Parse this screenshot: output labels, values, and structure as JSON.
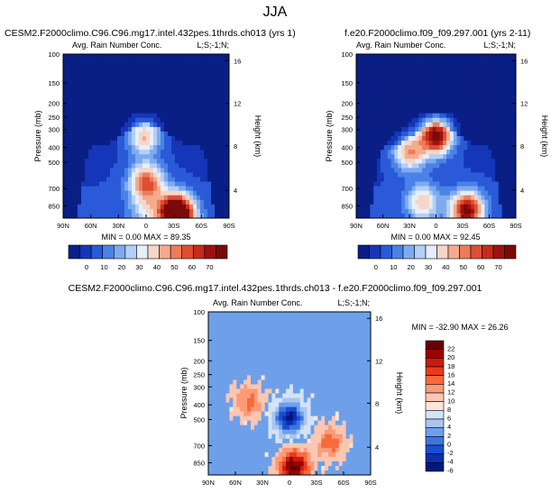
{
  "figure_title": "JJA",
  "chart_data": [
    {
      "type": "heatmap",
      "title": "CESM2.F2000climo.C96.C96.mg17.intel.432pes.1thrds.ch013 (yrs 1)",
      "subtitle_left": "Avg. Rain Number Conc.",
      "subtitle_right": "L;S;-1;N;",
      "ylabel": "Pressure (mb)",
      "ylabel_right": "Height (km)",
      "x_ticks": [
        "90N",
        "60N",
        "30N",
        "0",
        "30S",
        "60S",
        "90S"
      ],
      "y_ticks": [
        "100",
        "150",
        "200",
        "250",
        "300",
        "400",
        "500",
        "700",
        "850"
      ],
      "y2_ticks": [
        "16",
        "12",
        "8",
        "4"
      ],
      "min_max": "MIN =  0.00  MAX =  89.35",
      "colorbar_labels": [
        "0",
        "10",
        "20",
        "30",
        "40",
        "50",
        "60",
        "70"
      ],
      "colorbar_orientation": "horizontal",
      "value_range": [
        0,
        89.35
      ],
      "blobs": [
        {
          "x": 0.5,
          "y": 0.78,
          "v": 0.6
        },
        {
          "x": 0.2,
          "y": 0.95,
          "v": 0.25
        },
        {
          "x": -2,
          "y": 0.5,
          "v": 0.45
        },
        {
          "x": 30,
          "y": 0.95,
          "v": 0.45
        },
        {
          "x": 35,
          "y": 0.98,
          "v": 0.8
        }
      ]
    },
    {
      "type": "heatmap",
      "title": "f.e20.F2000climo.f09_f09.297.001 (yrs 2-11)",
      "subtitle_left": "Avg. Rain Number Conc.",
      "subtitle_right": "L;S;-1;N;",
      "ylabel": "Pressure (mb)",
      "ylabel_right": "Height (km)",
      "x_ticks": [
        "90N",
        "60N",
        "30N",
        "0",
        "30S",
        "60S",
        "90S"
      ],
      "y_ticks": [
        "100",
        "150",
        "200",
        "250",
        "300",
        "400",
        "500",
        "700",
        "850"
      ],
      "y2_ticks": [
        "16",
        "12",
        "8",
        "4"
      ],
      "min_max": "MIN =  0.00  MAX =  92.45",
      "colorbar_labels": [
        "0",
        "10",
        "20",
        "30",
        "40",
        "50",
        "60",
        "70"
      ],
      "colorbar_orientation": "horizontal",
      "value_range": [
        0,
        92.45
      ],
      "blobs": [
        {
          "x": -30,
          "y": 0.6,
          "v": 0.5
        },
        {
          "x": 0,
          "y": 0.5,
          "v": 0.85
        },
        {
          "x": -15,
          "y": 0.9,
          "v": 0.4
        },
        {
          "x": 35,
          "y": 0.95,
          "v": 0.8
        }
      ]
    },
    {
      "type": "heatmap",
      "title": "CESM2.F2000climo.C96.C96.mg17.intel.432pes.1thrds.ch013 - f.e20.F2000climo.f09_f09.297.001",
      "subtitle_left": "Avg. Rain Number Conc.",
      "subtitle_right": "L;S;-1;N;",
      "ylabel": "Pressure (mb)",
      "ylabel_right": "Height (km)",
      "x_ticks": [
        "90N",
        "60N",
        "30N",
        "0",
        "30S",
        "60S",
        "90S"
      ],
      "y_ticks": [
        "100",
        "150",
        "200",
        "250",
        "300",
        "400",
        "500",
        "700",
        "850"
      ],
      "y2_ticks": [
        "16",
        "12",
        "8",
        "4"
      ],
      "min_max": "MIN = -32.90  MAX =  26.26",
      "colorbar_labels": [
        "22",
        "20",
        "18",
        "16",
        "14",
        "12",
        "10",
        "8",
        "6",
        "4",
        "2",
        "0",
        "-2",
        "-4",
        "-6"
      ],
      "colorbar_orientation": "vertical",
      "value_range": [
        -32.9,
        26.26
      ],
      "blobs": [
        {
          "x": 0,
          "y": 0.65,
          "v": -0.9
        },
        {
          "x": 5,
          "y": 0.95,
          "v": 0.95
        },
        {
          "x": -45,
          "y": 0.55,
          "v": 0.4
        },
        {
          "x": 45,
          "y": 0.8,
          "v": 0.4
        }
      ]
    }
  ],
  "palettes": {
    "sequential": [
      "#0a1f86",
      "#1536b8",
      "#2a5ad8",
      "#4a82e6",
      "#7eaaf0",
      "#b4cff6",
      "#e7eef9",
      "#f6d6c8",
      "#f3ab8e",
      "#ec7c5a",
      "#df4e32",
      "#c62b1c",
      "#9d1210",
      "#7a0a08"
    ],
    "diverging": [
      "#6a0000",
      "#9b0000",
      "#cc1a10",
      "#ea3a1e",
      "#f86a3a",
      "#fb9a78",
      "#fdc6b0",
      "#fbe6d8",
      "#d4e3f6",
      "#a9c6f0",
      "#6ea0ea",
      "#3f74e0",
      "#1a4ed0",
      "#0b2fb0",
      "#02197a"
    ]
  }
}
